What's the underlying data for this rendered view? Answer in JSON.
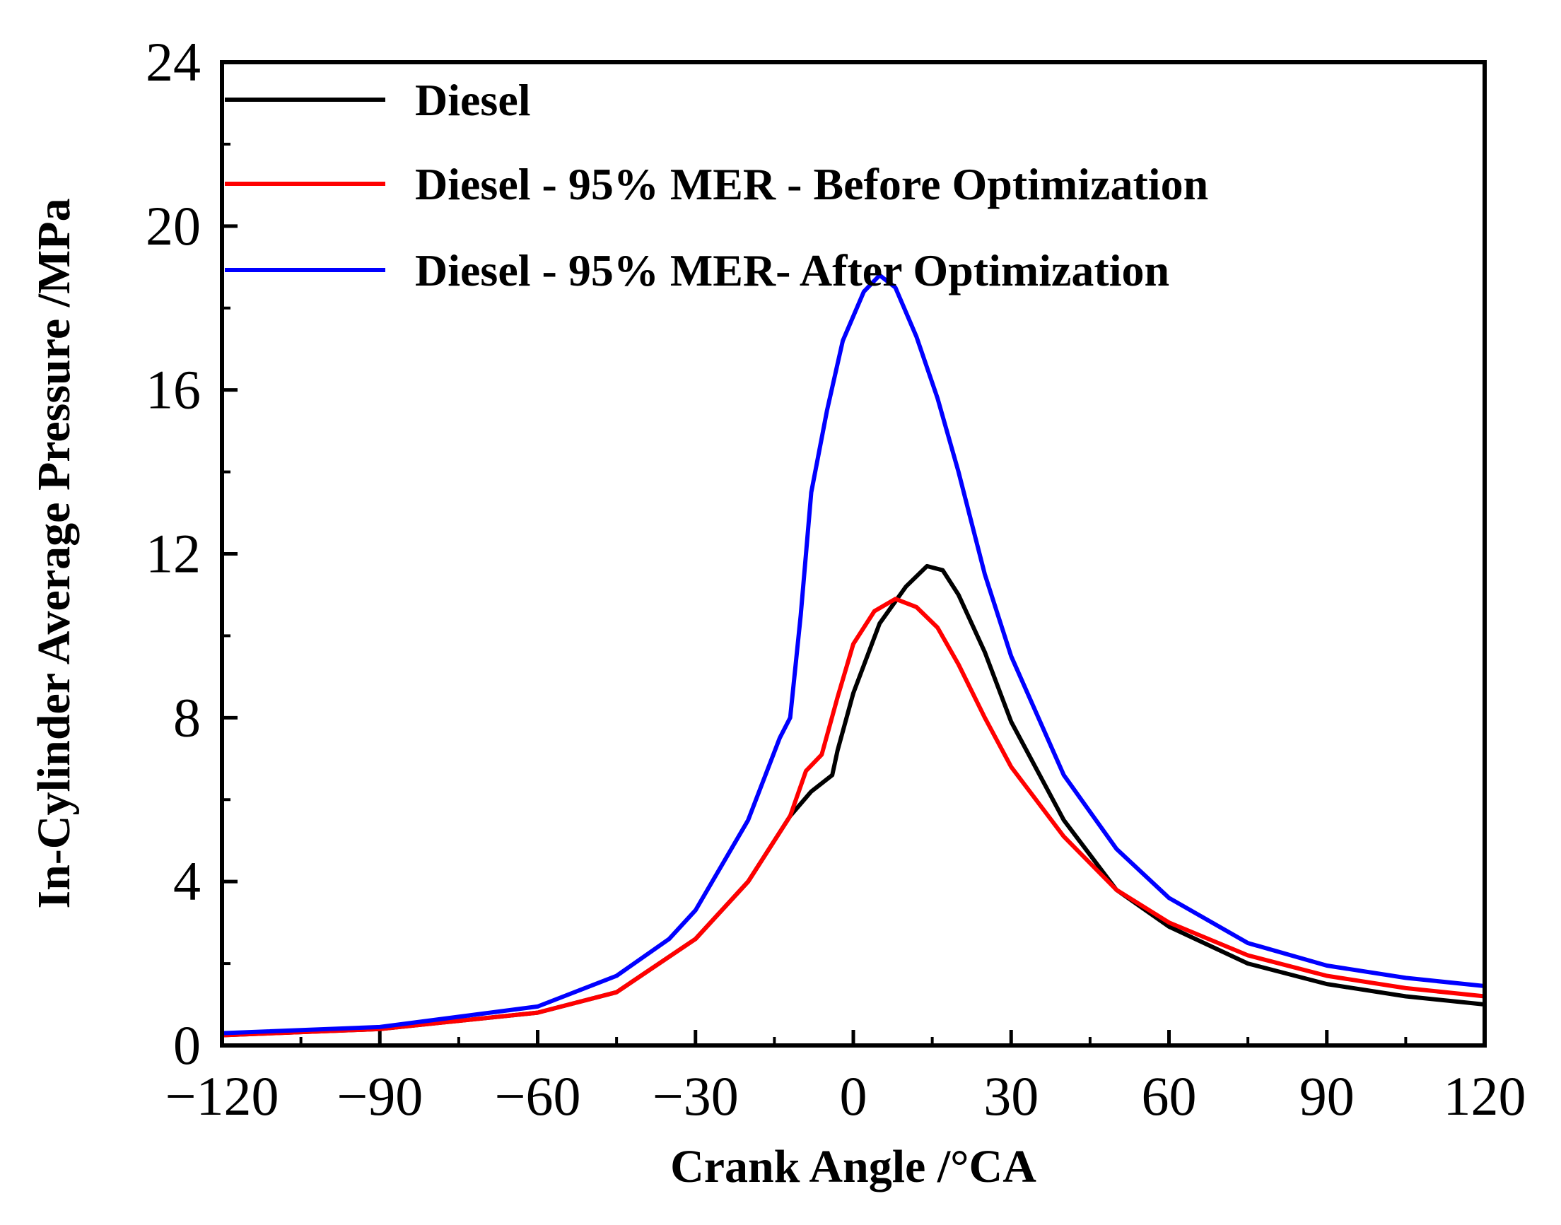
{
  "chart_data": {
    "type": "line",
    "title": "",
    "xlabel": "Crank Angle /°CA",
    "ylabel": "In-Cylinder Average Pressure /MPa",
    "xlim": [
      -120,
      120
    ],
    "ylim": [
      0,
      24
    ],
    "xticks": [
      -120,
      -90,
      -60,
      -30,
      0,
      30,
      60,
      90,
      120
    ],
    "xtick_labels": [
      "−120",
      "−90",
      "−60",
      "−30",
      "0",
      "30",
      "60",
      "90",
      "120"
    ],
    "yticks": [
      0,
      4,
      8,
      12,
      16,
      20,
      24
    ],
    "ytick_labels": [
      "0",
      "4",
      "8",
      "12",
      "16",
      "20",
      "24"
    ],
    "grid": false,
    "legend_position": "top-left",
    "series": [
      {
        "name": "Diesel",
        "color": "#000000",
        "x": [
          -120,
          -90,
          -60,
          -45,
          -30,
          -20,
          -12,
          -8,
          -4,
          -3,
          0,
          5,
          10,
          14,
          17,
          20,
          25,
          30,
          40,
          50,
          60,
          75,
          90,
          105,
          120
        ],
        "y": [
          0.25,
          0.4,
          0.8,
          1.3,
          2.6,
          4.0,
          5.6,
          6.2,
          6.6,
          7.2,
          8.6,
          10.3,
          11.2,
          11.7,
          11.6,
          11.0,
          9.6,
          7.9,
          5.5,
          3.8,
          2.9,
          2.0,
          1.5,
          1.2,
          1.0
        ]
      },
      {
        "name": "Diesel - 95% MER - Before Optimization",
        "color": "#ff0000",
        "x": [
          -120,
          -90,
          -60,
          -45,
          -30,
          -20,
          -12,
          -9,
          -6,
          -3,
          0,
          4,
          8,
          12,
          16,
          20,
          25,
          30,
          40,
          50,
          60,
          75,
          90,
          105,
          120
        ],
        "y": [
          0.25,
          0.4,
          0.8,
          1.3,
          2.6,
          4.0,
          5.6,
          6.7,
          7.1,
          8.5,
          9.8,
          10.6,
          10.9,
          10.7,
          10.2,
          9.3,
          8.0,
          6.8,
          5.1,
          3.8,
          3.0,
          2.2,
          1.7,
          1.4,
          1.2
        ]
      },
      {
        "name": "Diesel - 95% MER- After Optimization",
        "color": "#0000ff",
        "x": [
          -120,
          -90,
          -60,
          -45,
          -35,
          -30,
          -20,
          -14,
          -12,
          -10,
          -8,
          -5,
          -2,
          2,
          5,
          8,
          12,
          16,
          20,
          25,
          30,
          40,
          50,
          60,
          75,
          90,
          105,
          120
        ],
        "y": [
          0.3,
          0.45,
          0.95,
          1.7,
          2.6,
          3.3,
          5.5,
          7.5,
          8.0,
          10.5,
          13.5,
          15.5,
          17.2,
          18.4,
          18.8,
          18.5,
          17.3,
          15.8,
          14.0,
          11.5,
          9.5,
          6.6,
          4.8,
          3.6,
          2.5,
          1.95,
          1.65,
          1.45
        ]
      }
    ]
  }
}
